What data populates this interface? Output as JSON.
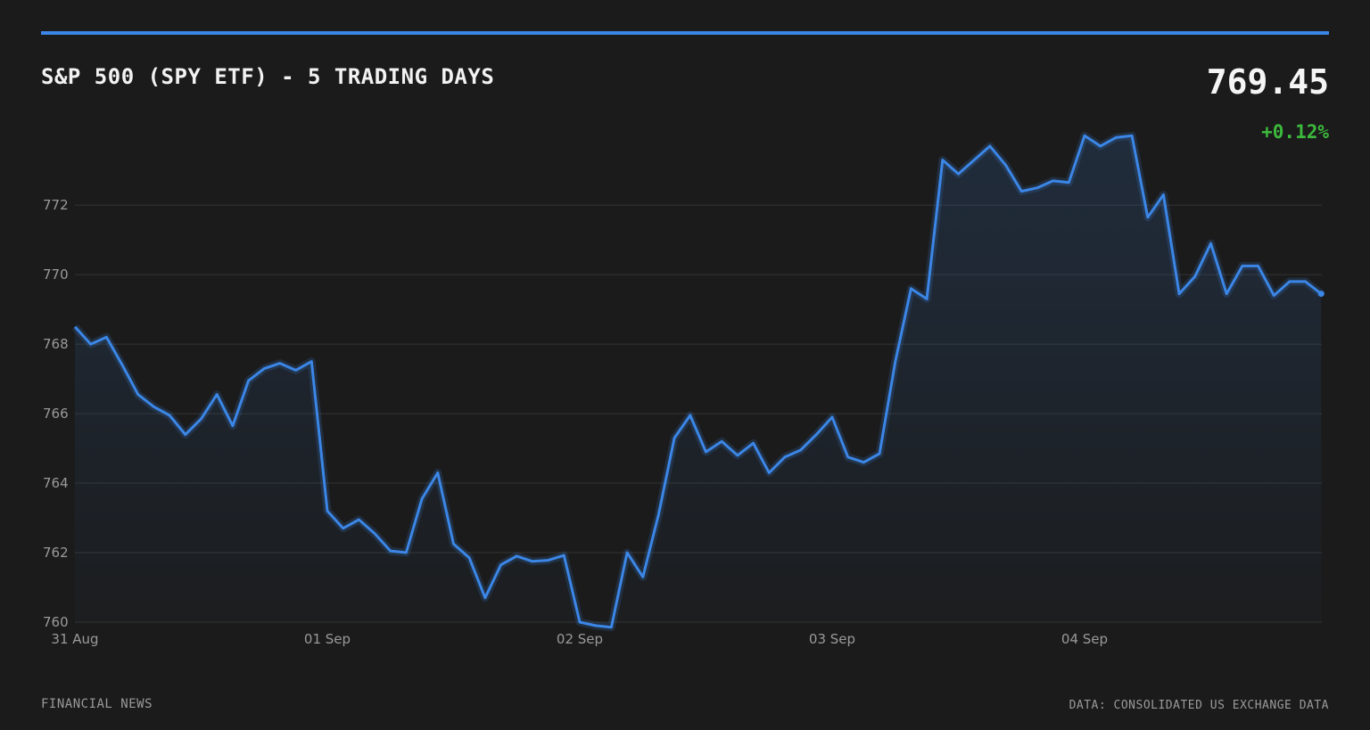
{
  "header": {
    "title": "S&P 500 (SPY ETF) - 5 TRADING DAYS",
    "price": "769.45",
    "change": "+0.12%"
  },
  "footer": {
    "source_left": "FINANCIAL NEWS",
    "source_right": "DATA: CONSOLIDATED US EXCHANGE DATA"
  },
  "colors": {
    "accent": "#3b86e6",
    "positive": "#3cb83c",
    "background": "#1b1b1b",
    "grid": "#333333"
  },
  "chart_data": {
    "type": "area",
    "title": "S&P 500 (SPY ETF) - 5 TRADING DAYS",
    "xlabel": "",
    "ylabel": "",
    "ylim": [
      760,
      773.8
    ],
    "yticks": [
      760,
      762,
      764,
      766,
      768,
      770,
      772
    ],
    "xtick_labels": [
      "31 Aug",
      "01 Sep",
      "02 Sep",
      "03 Sep",
      "04 Sep"
    ],
    "days": 5,
    "points_per_day": 16,
    "grid": "horizontal",
    "legend": "none",
    "series": [
      {
        "values": [
          768.5,
          768.0,
          768.2,
          767.4,
          766.55,
          766.2,
          765.95,
          765.4,
          765.85,
          766.55,
          765.65,
          766.95,
          767.3,
          767.45,
          767.25,
          767.5,
          763.2,
          762.7,
          762.95,
          762.55,
          762.05,
          762.0,
          763.55,
          764.3,
          762.25,
          761.85,
          760.7,
          761.65,
          761.9,
          761.75,
          761.78,
          761.92,
          760.0,
          759.9,
          759.85,
          762.0,
          761.3,
          763.1,
          765.3,
          765.95,
          764.9,
          765.2,
          764.8,
          765.15,
          764.3,
          764.75,
          764.95,
          765.4,
          765.9,
          764.75,
          764.6,
          764.85,
          767.5,
          769.6,
          769.3,
          773.3,
          772.9,
          773.3,
          773.7,
          773.15,
          772.4,
          772.5,
          772.7,
          772.65,
          774.0,
          773.7,
          773.95,
          774.0,
          771.65,
          772.3,
          769.45,
          769.95,
          770.9,
          769.45,
          770.25,
          770.25,
          769.4,
          769.8,
          769.8,
          769.45
        ]
      }
    ]
  }
}
